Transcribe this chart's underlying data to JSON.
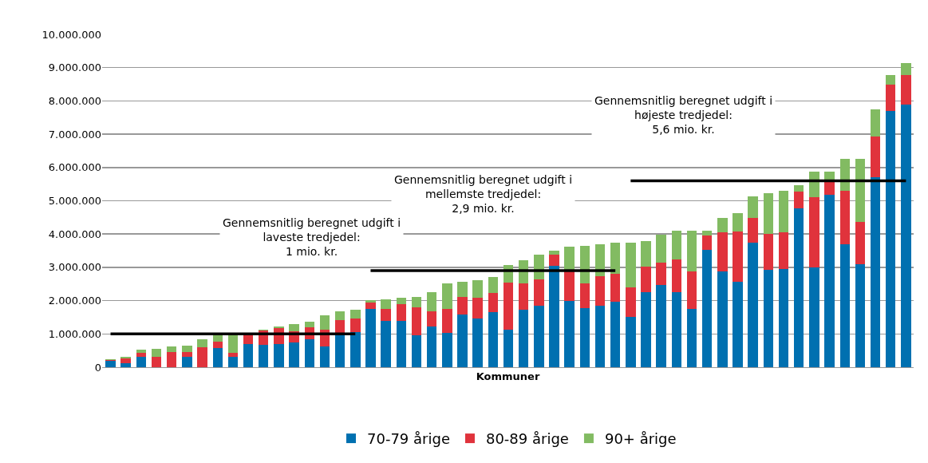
{
  "chart_data": {
    "type": "bar",
    "stacked": true,
    "xlabel": "Kommuner",
    "categories": [
      null,
      null,
      null,
      null,
      null,
      null,
      null,
      null,
      null,
      null,
      null,
      null,
      null,
      null,
      null,
      null,
      null,
      null,
      null,
      null,
      null,
      null,
      null,
      null,
      null,
      null,
      null,
      null,
      null,
      null,
      null,
      null,
      null,
      null,
      null,
      null,
      null,
      null,
      null,
      null,
      null,
      null,
      null,
      null,
      null,
      null,
      null,
      null,
      null,
      null,
      null,
      null,
      null
    ],
    "series": [
      {
        "name": "70-79 årige",
        "color": "#0070b0",
        "values": [
          180000,
          130000,
          320000,
          0,
          0,
          320000,
          0,
          570000,
          300000,
          700000,
          680000,
          700000,
          750000,
          850000,
          620000,
          1000000,
          1050000,
          1760000,
          1400000,
          1380000,
          970000,
          1230000,
          1040000,
          1590000,
          1460000,
          1650000,
          1130000,
          1730000,
          1840000,
          3050000,
          1980000,
          1770000,
          1850000,
          1960000,
          1500000,
          2260000,
          2480000,
          2260000,
          1760000,
          3520000,
          2880000,
          2560000,
          3730000,
          2920000,
          2960000,
          4780000,
          2990000,
          5170000,
          3700000,
          3100000,
          5700000,
          7690000,
          7890000
        ]
      },
      {
        "name": "80-89 årige",
        "color": "#e0333c",
        "values": [
          40000,
          140000,
          100000,
          300000,
          460000,
          140000,
          600000,
          190000,
          140000,
          270000,
          430000,
          470000,
          320000,
          360000,
          510000,
          420000,
          410000,
          180000,
          350000,
          510000,
          840000,
          460000,
          710000,
          510000,
          620000,
          570000,
          1420000,
          780000,
          810000,
          330000,
          910000,
          760000,
          880000,
          840000,
          910000,
          750000,
          670000,
          970000,
          1120000,
          430000,
          1170000,
          1510000,
          750000,
          1090000,
          1090000,
          500000,
          2120000,
          450000,
          1610000,
          1260000,
          1230000,
          790000,
          880000
        ]
      },
      {
        "name": "90+ årige",
        "color": "#82bb62",
        "values": [
          30000,
          50000,
          110000,
          260000,
          160000,
          180000,
          230000,
          230000,
          550000,
          0,
          20000,
          60000,
          230000,
          150000,
          430000,
          270000,
          260000,
          70000,
          300000,
          190000,
          310000,
          570000,
          780000,
          460000,
          540000,
          490000,
          530000,
          710000,
          730000,
          120000,
          730000,
          1120000,
          970000,
          940000,
          1340000,
          790000,
          820000,
          870000,
          1220000,
          150000,
          440000,
          550000,
          650000,
          1220000,
          1260000,
          190000,
          760000,
          250000,
          960000,
          1910000,
          820000,
          300000,
          370000
        ]
      },
      {
        "type": "line",
        "color": "#000000",
        "values": [
          1000000,
          1000000,
          1000000,
          1000000,
          1000000,
          1000000,
          1000000,
          1000000,
          1000000,
          1000000,
          1000000,
          1000000,
          1000000,
          1000000,
          1000000,
          1000000,
          1000000,
          null,
          null,
          null,
          null,
          null,
          null,
          null,
          null,
          null,
          null,
          null,
          null,
          null,
          null,
          null,
          null,
          null,
          null,
          null,
          null,
          null,
          null,
          null,
          null,
          null,
          null,
          null,
          null,
          null,
          null,
          null,
          null,
          null,
          null,
          null,
          null
        ]
      },
      {
        "type": "line",
        "color": "#000000",
        "values": [
          null,
          null,
          null,
          null,
          null,
          null,
          null,
          null,
          null,
          null,
          null,
          null,
          null,
          null,
          null,
          null,
          null,
          2900000,
          2900000,
          2900000,
          2900000,
          2900000,
          2900000,
          2900000,
          2900000,
          2900000,
          2900000,
          2900000,
          2900000,
          2900000,
          2900000,
          2900000,
          2900000,
          2900000,
          null,
          null,
          null,
          null,
          null,
          null,
          null,
          null,
          null,
          null,
          null,
          null,
          null,
          null,
          null,
          null,
          null,
          null,
          null
        ]
      },
      {
        "type": "line",
        "color": "#000000",
        "values": [
          null,
          null,
          null,
          null,
          null,
          null,
          null,
          null,
          null,
          null,
          null,
          null,
          null,
          null,
          null,
          null,
          null,
          null,
          null,
          null,
          null,
          null,
          null,
          null,
          null,
          null,
          null,
          null,
          null,
          null,
          null,
          null,
          null,
          null,
          5600000,
          5600000,
          5600000,
          5600000,
          5600000,
          5600000,
          5600000,
          5600000,
          5600000,
          5600000,
          5600000,
          5600000,
          5600000,
          5600000,
          5600000,
          5600000,
          5600000,
          5600000,
          5600000
        ]
      }
    ],
    "ylim": [
      0,
      10000000
    ],
    "yticks": [
      0,
      {
        "value": 1000000,
        "label": "1.000.000"
      },
      {
        "value": 2000000,
        "label": "2.000.000"
      },
      {
        "value": 3000000,
        "label": "3.000.000"
      },
      {
        "value": 4000000,
        "label": "4.000.000"
      },
      {
        "value": 5000000,
        "label": "5.000.000"
      },
      {
        "value": 6000000,
        "label": "6.000.000"
      },
      {
        "value": 7000000,
        "label": "7.000.000"
      },
      {
        "value": 8000000,
        "label": "8.000.000"
      },
      {
        "value": 9000000,
        "label": "9.000.000"
      },
      {
        "value": 10000000,
        "label": "10.000.000"
      }
    ],
    "grid": "y",
    "legend": "bottom",
    "tick_labels": "y",
    "annotations": [
      "Gennemsnitlig beregnet udgift i\nlaveste tredjedel:\n1 mio. kr.",
      "Gennemsnitlig beregnet udgift i\nmellemste tredjedel:\n2,9 mio. kr.",
      "Gennemsnitlig beregnet udgift i\nhøjeste tredjedel:\n5,6 mio. kr."
    ]
  }
}
